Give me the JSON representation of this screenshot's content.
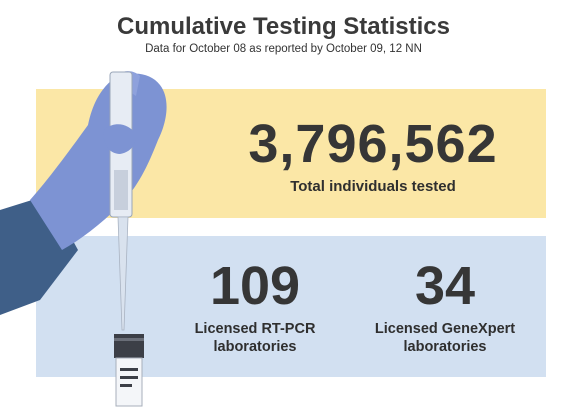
{
  "header": {
    "title": "Cumulative Testing Statistics",
    "subtitle": "Data for October 08 as reported by October 09, 12 NN"
  },
  "total": {
    "value": "3,796,562",
    "label": "Total individuals tested"
  },
  "labs": [
    {
      "value": "109",
      "label_line1": "Licensed RT-PCR",
      "label_line2": "laboratories"
    },
    {
      "value": "34",
      "label_line1": "Licensed GeneXpert",
      "label_line2": "laboratories"
    }
  ],
  "colors": {
    "yellow_panel": "#fbe7a6",
    "blue_panel": "#d2e0f1",
    "glove": "#7d93d3",
    "sleeve": "#3f5f88"
  }
}
